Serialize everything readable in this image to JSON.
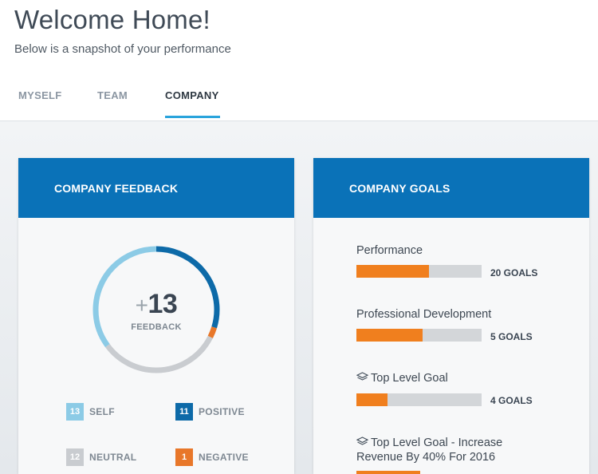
{
  "header": {
    "title": "Welcome Home!",
    "subtitle": "Below is a snapshot of your performance"
  },
  "tabs": [
    {
      "label": "MYSELF",
      "active": false
    },
    {
      "label": "TEAM",
      "active": false
    },
    {
      "label": "COMPANY",
      "active": true
    }
  ],
  "colors": {
    "accent": "#2aa4dc",
    "card_header": "#0a72b8",
    "self": "#8ccbe6",
    "positive": "#0d6aa8",
    "neutral": "#c9ccd0",
    "negative": "#e8772a",
    "goal_fill": "#f07f1e",
    "goal_track": "#d3d6d9"
  },
  "feedback": {
    "title": "COMPANY FEEDBACK",
    "total_prefix": "+",
    "total": "13",
    "total_label": "FEEDBACK",
    "legend": [
      {
        "count": "13",
        "label": "SELF"
      },
      {
        "count": "11",
        "label": "POSITIVE"
      },
      {
        "count": "12",
        "label": "NEUTRAL"
      },
      {
        "count": "1",
        "label": "NEGATIVE"
      }
    ]
  },
  "goals": {
    "title": "COMPANY GOALS",
    "items": [
      {
        "label": "Performance",
        "count": "20 GOALS",
        "progress": 0.58,
        "icon": ""
      },
      {
        "label": "Professional Development",
        "count": "5 GOALS",
        "progress": 0.53,
        "icon": ""
      },
      {
        "label": "Top Level Goal",
        "count": "4 GOALS",
        "progress": 0.25,
        "icon": "layers-icon"
      },
      {
        "label_line1": "Top Level Goal - Increase",
        "label_line2": "Revenue By 40% For 2016",
        "icon": "layers-icon"
      }
    ]
  }
}
